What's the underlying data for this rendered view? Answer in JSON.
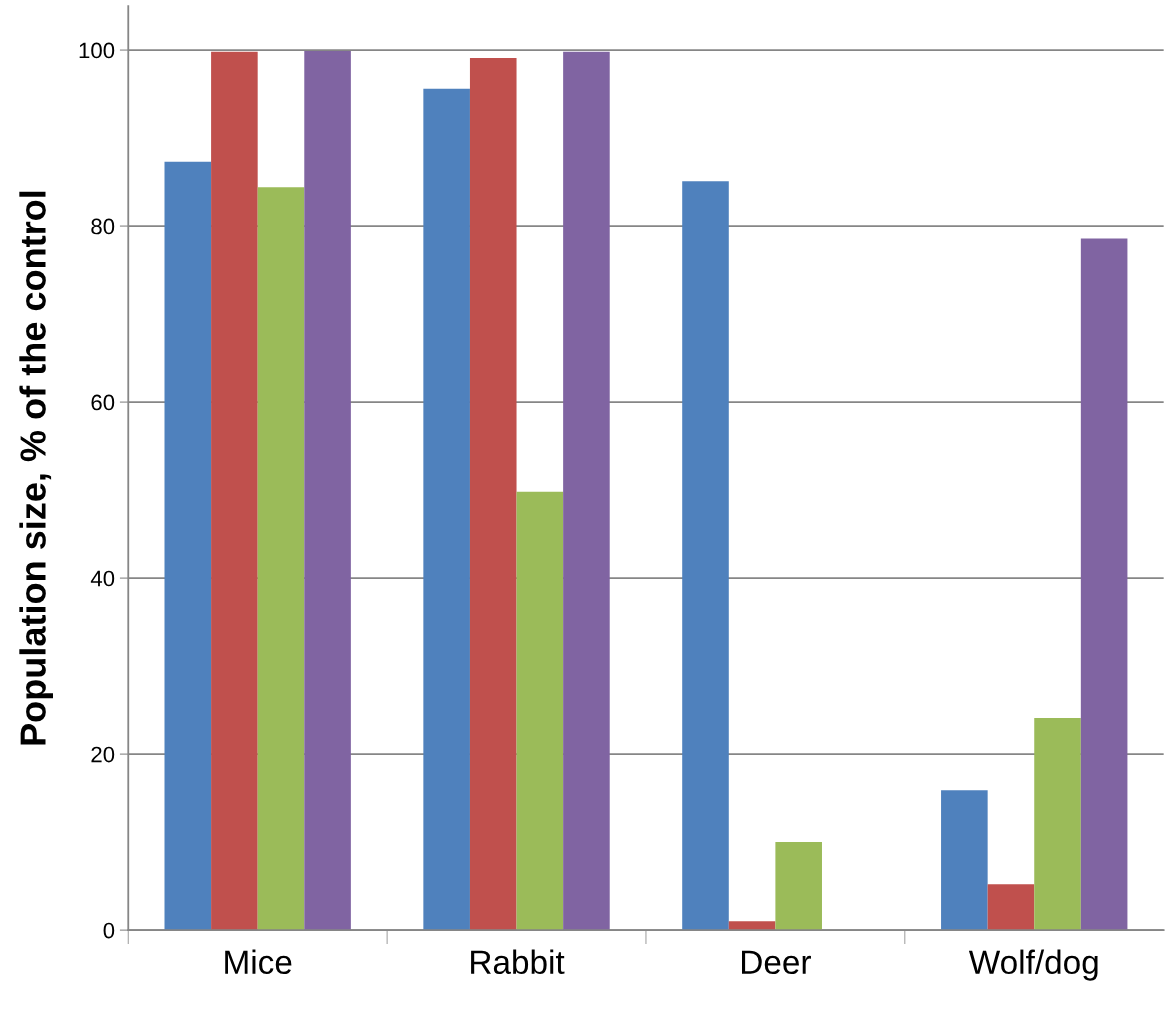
{
  "chart_data": {
    "type": "bar",
    "ylabel": "Population size, % of the control",
    "categories": [
      "Mice",
      "Rabbit",
      "Deer",
      "Wolf/dog"
    ],
    "series": [
      {
        "color": "#4f81bd",
        "values": [
          87.3,
          95.6,
          85.1,
          15.9
        ]
      },
      {
        "color": "#c0504d",
        "values": [
          99.8,
          99.1,
          1.0,
          5.2
        ]
      },
      {
        "color": "#9bbb59",
        "values": [
          84.4,
          49.8,
          10.0,
          24.1
        ]
      },
      {
        "color": "#8064a2",
        "values": [
          99.9,
          99.8,
          0,
          78.6
        ]
      }
    ],
    "ylim": [
      0,
      105
    ],
    "yticks": [
      0,
      20,
      40,
      60,
      80,
      100
    ],
    "grid": "y",
    "legend": false
  }
}
